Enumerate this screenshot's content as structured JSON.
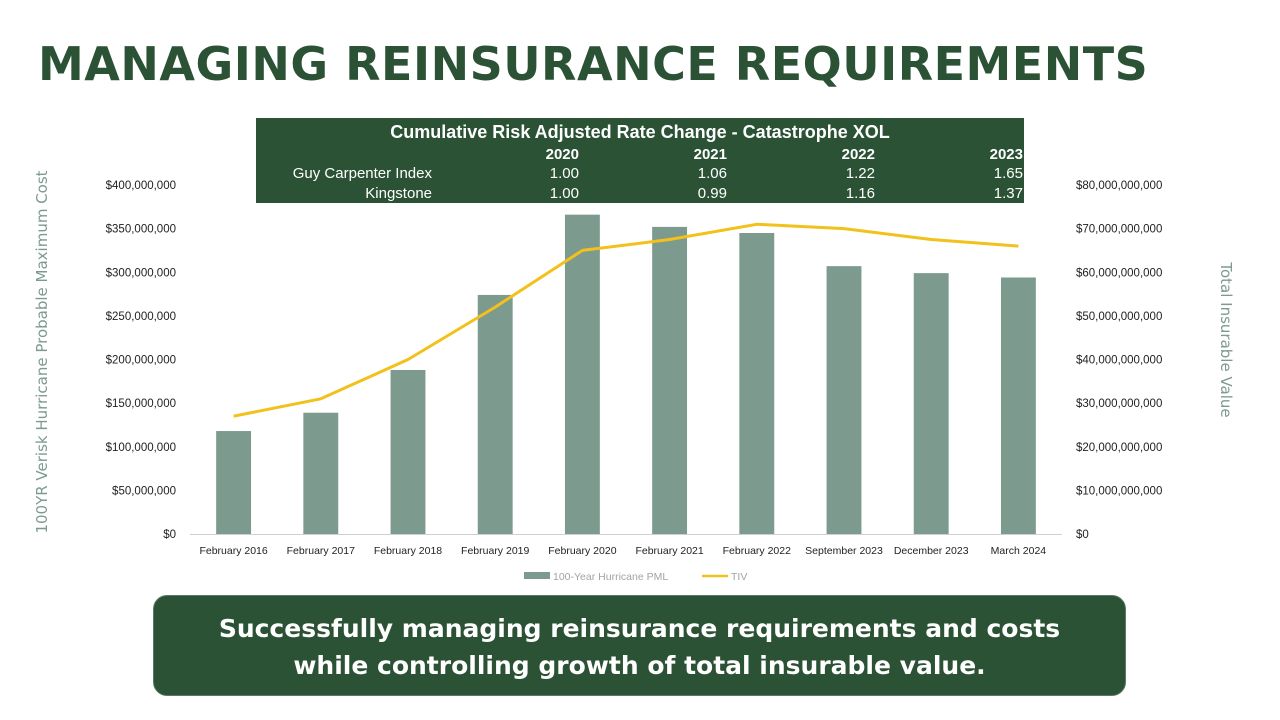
{
  "slide": {
    "title": "MANAGING REINSURANCE REQUIREMENTS",
    "banner_line1": "Successfully managing reinsurance requirements and costs",
    "banner_line2": "while controlling growth of total insurable value."
  },
  "rate_table": {
    "title": "Cumulative Risk Adjusted Rate Change - Catastrophe XOL",
    "years": [
      "2020",
      "2021",
      "2022",
      "2023"
    ],
    "rows": [
      {
        "label": "Guy Carpenter Index",
        "values": [
          "1.00",
          "1.06",
          "1.22",
          "1.65"
        ]
      },
      {
        "label": "Kingstone",
        "values": [
          "1.00",
          "0.99",
          "1.16",
          "1.37"
        ]
      }
    ]
  },
  "colors": {
    "brand_green": "#2b5235",
    "bar": "#7c9a8e",
    "line": "#f2c11c",
    "axis_title": "#7d9a8f"
  },
  "chart_data": {
    "type": "bar",
    "categories": [
      "February 2016",
      "February 2017",
      "February 2018",
      "February 2019",
      "February 2020",
      "February 2021",
      "February 2022",
      "September 2023",
      "December 2023",
      "March 2024"
    ],
    "series": [
      {
        "name": "100-Year Hurricane PML",
        "type": "bar",
        "axis": "left",
        "values": [
          118000000,
          139000000,
          188000000,
          274000000,
          366000000,
          352000000,
          345000000,
          307000000,
          299000000,
          294000000
        ]
      },
      {
        "name": "TIV",
        "type": "line",
        "axis": "right",
        "values": [
          27000000000,
          31000000000,
          40000000000,
          52000000000,
          65000000000,
          67500000000,
          71000000000,
          70000000000,
          67500000000,
          66000000000
        ]
      }
    ],
    "ylabel": "100YR Verisk Hurricane Probable Maximum Cost",
    "y2label": "Total Insurable Value",
    "ylim": [
      0,
      400000000
    ],
    "y2lim": [
      0,
      80000000000
    ],
    "yticks": [
      "$0",
      "$50,000,000",
      "$100,000,000",
      "$150,000,000",
      "$200,000,000",
      "$250,000,000",
      "$300,000,000",
      "$350,000,000",
      "$400,000,000"
    ],
    "y2ticks": [
      "$0",
      "$10,000,000,000",
      "$20,000,000,000",
      "$30,000,000,000",
      "$40,000,000,000",
      "$50,000,000,000",
      "$60,000,000,000",
      "$70,000,000,000",
      "$80,000,000,000"
    ],
    "legend": [
      "100-Year Hurricane PML",
      "TIV"
    ],
    "legend_position": "bottom"
  }
}
